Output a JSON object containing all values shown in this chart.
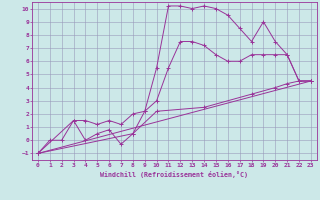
{
  "background_color": "#cce8e8",
  "grid_color": "#9999bb",
  "line_color": "#993399",
  "xlabel": "Windchill (Refroidissement éolien,°C)",
  "xlim": [
    -0.5,
    23.5
  ],
  "ylim": [
    -1.5,
    10.5
  ],
  "yticks": [
    -1,
    0,
    1,
    2,
    3,
    4,
    5,
    6,
    7,
    8,
    9,
    10
  ],
  "xticks": [
    0,
    1,
    2,
    3,
    4,
    5,
    6,
    7,
    8,
    9,
    10,
    11,
    12,
    13,
    14,
    15,
    16,
    17,
    18,
    19,
    20,
    21,
    22,
    23
  ],
  "line1_x": [
    0,
    1,
    2,
    3,
    4,
    5,
    6,
    7,
    8,
    9,
    10,
    11,
    12,
    13,
    14,
    15,
    16,
    17,
    18,
    19,
    20,
    21,
    22,
    23
  ],
  "line1_y": [
    -1,
    0,
    0,
    1.5,
    0,
    0.5,
    0.8,
    -0.3,
    0.5,
    2.2,
    5.5,
    10.2,
    10.2,
    10,
    10.2,
    10,
    9.5,
    8.5,
    7.5,
    9.0,
    7.5,
    6.5,
    4.5,
    4.5
  ],
  "line2_x": [
    0,
    3,
    4,
    5,
    6,
    7,
    8,
    9,
    10,
    11,
    12,
    13,
    14,
    15,
    16,
    17,
    18,
    19,
    20,
    21,
    22,
    23
  ],
  "line2_y": [
    -1,
    1.5,
    1.5,
    1.2,
    1.5,
    1.2,
    2.0,
    2.2,
    3.0,
    5.5,
    7.5,
    7.5,
    7.2,
    6.5,
    6.0,
    6.0,
    6.5,
    6.5,
    6.5,
    6.5,
    4.5,
    4.5
  ],
  "line3_x": [
    0,
    23
  ],
  "line3_y": [
    -1,
    4.5
  ],
  "line4_x": [
    0,
    8,
    10,
    14,
    18,
    20,
    21,
    22,
    23
  ],
  "line4_y": [
    -1,
    0.5,
    2.2,
    2.5,
    3.5,
    4.0,
    4.3,
    4.5,
    4.5
  ]
}
